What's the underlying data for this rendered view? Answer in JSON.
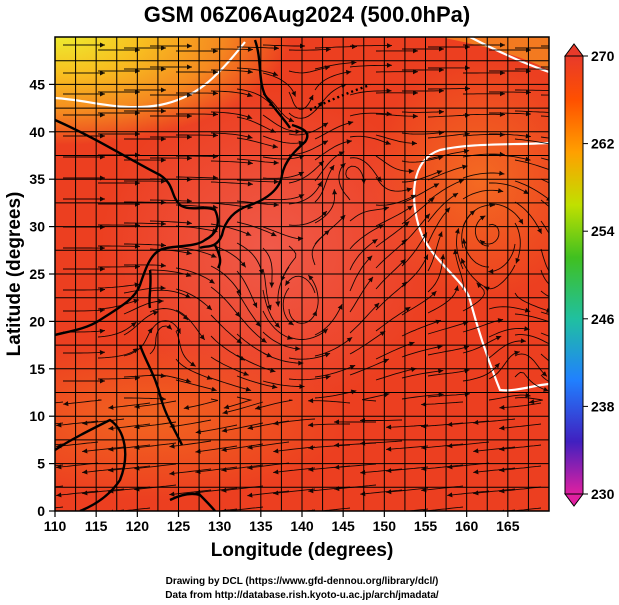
{
  "title": "GSM 06Z06Aug2024 (500.0hPa)",
  "credits": [
    "Drawing by DCL (https://www.gfd-dennou.org/library/dcl/)",
    "Data from http://database.rish.kyoto-u.ac.jp/arch/jmadata/"
  ],
  "chart_data": {
    "type": "heatmap",
    "variable_note": "500 hPa temperature shading with streamlines",
    "xlabel": "Longitude (degrees)",
    "ylabel": "Latitude  (degrees)",
    "xlim": [
      110,
      170
    ],
    "ylim": [
      0,
      50
    ],
    "x_ticks": [
      110,
      115,
      120,
      125,
      130,
      135,
      140,
      145,
      150,
      155,
      160,
      165
    ],
    "y_ticks": [
      0,
      5,
      10,
      15,
      20,
      25,
      30,
      35,
      40,
      45
    ],
    "grid": true,
    "colorbar": {
      "range": [
        230,
        270
      ],
      "ticks": [
        230,
        238,
        246,
        254,
        262,
        270
      ],
      "colors": [
        "#e020a0",
        "#4020c0",
        "#2080ff",
        "#20c0a0",
        "#40c020",
        "#c0e000",
        "#ffa000",
        "#ff5000",
        "#e83a2a"
      ]
    },
    "colors": {
      "warm": "#ee3a1e",
      "warmest": "#f05a4a",
      "cool": "#f8c020",
      "coolest": "#ecec30",
      "contour": "#ffffff"
    }
  }
}
